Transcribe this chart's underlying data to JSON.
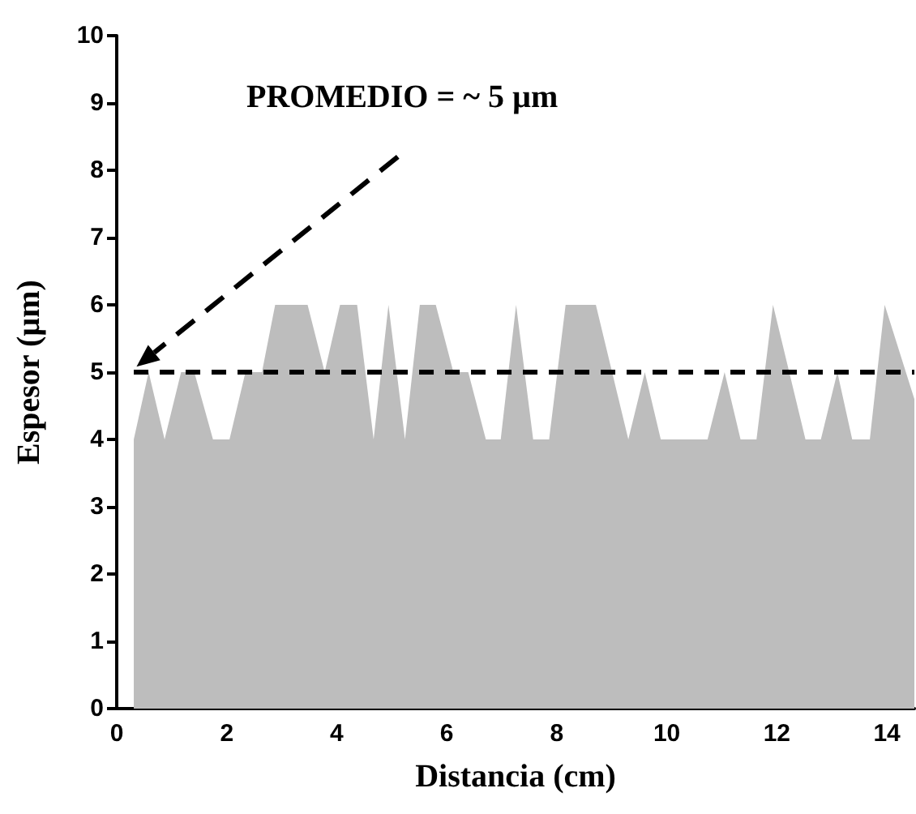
{
  "chart_data": {
    "type": "area",
    "xlabel": "Distancia (cm)",
    "ylabel": "Espesor (µm)",
    "x": [
      0.31,
      0.58,
      0.87,
      1.17,
      1.41,
      1.75,
      2.05,
      2.34,
      2.64,
      2.88,
      3.47,
      3.78,
      4.06,
      4.37,
      4.67,
      4.94,
      5.24,
      5.51,
      5.8,
      6.12,
      6.39,
      6.71,
      6.98,
      7.26,
      7.57,
      7.86,
      8.16,
      8.71,
      9.3,
      9.6,
      9.89,
      10.74,
      11.05,
      11.34,
      11.63,
      11.93,
      12.52,
      12.8,
      13.1,
      13.37,
      13.69,
      13.96,
      14.5
    ],
    "series": [
      {
        "color": "#bdbdbd",
        "values": [
          4,
          5,
          4,
          5,
          5,
          4,
          4,
          5,
          5,
          6,
          6,
          5,
          6,
          6,
          4,
          6,
          4,
          6,
          6,
          5,
          5,
          4,
          4,
          6,
          4,
          4,
          6,
          6,
          4,
          5,
          4,
          4,
          5,
          4,
          4,
          6,
          4,
          4,
          5,
          4,
          4,
          6,
          4.6
        ]
      }
    ],
    "xlim": [
      0,
      14.5
    ],
    "xticks": [
      0,
      2,
      4,
      6,
      8,
      10,
      12,
      14
    ],
    "ylim": [
      0,
      10
    ],
    "yticks": [
      0,
      1,
      2,
      3,
      4,
      5,
      6,
      7,
      8,
      9,
      10
    ],
    "grid": false,
    "marker": "none",
    "ref_lines": [
      {
        "axis": "y",
        "value": 5,
        "color": "#000000",
        "line_style": "dashed"
      }
    ],
    "annotations": [
      "PROMEDIO = ~ 5 µm"
    ]
  }
}
